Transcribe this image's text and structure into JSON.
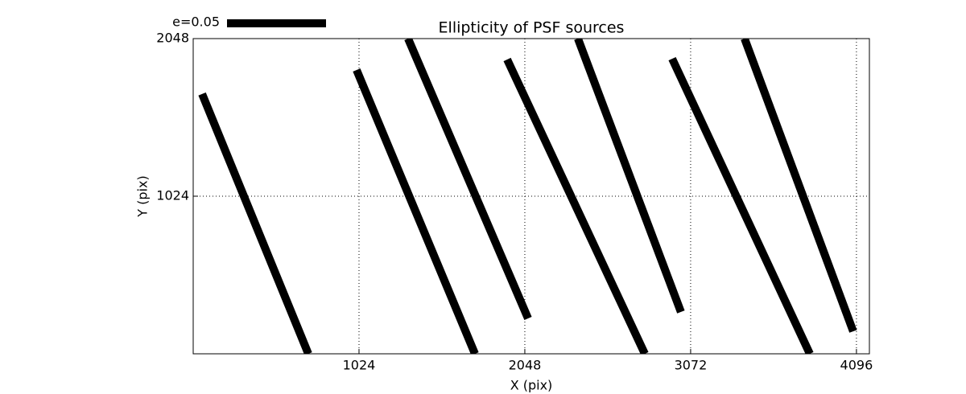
{
  "chart_data": {
    "type": "whisker",
    "title": "Ellipticity of PSF sources",
    "xlabel": "X (pix)",
    "ylabel": "Y (pix)",
    "legend_label": "e=0.05",
    "color": "#000000",
    "x_start": [
      55,
      1009,
      1327,
      1939,
      2376,
      2958,
      3405
    ],
    "y_start": [
      1688,
      1844,
      2048,
      1912,
      2048,
      1917,
      2048
    ],
    "x_end": [
      711,
      1740,
      2068,
      2789,
      3012,
      3808,
      4076
    ],
    "y_end": [
      0,
      0,
      230,
      0,
      272,
      0,
      146
    ],
    "xlim": [
      0,
      4176
    ],
    "ylim": [
      0,
      2048
    ],
    "xticks": [
      1024,
      2048,
      3072,
      4096
    ],
    "yticks": [
      1024,
      2048
    ],
    "grid": true
  }
}
